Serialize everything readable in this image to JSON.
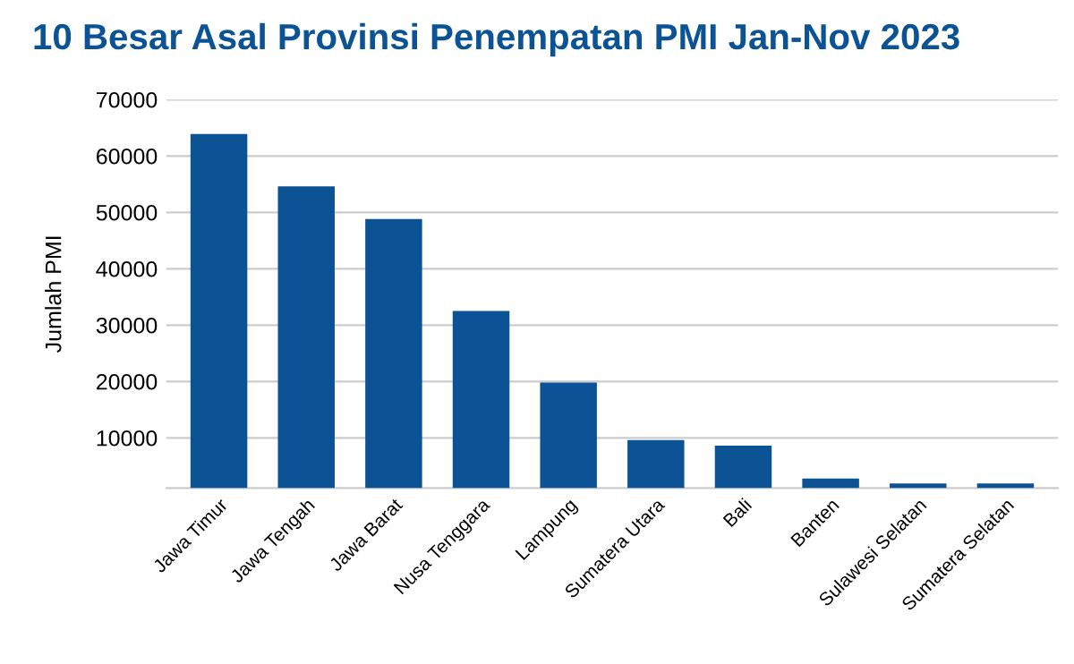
{
  "chart_data": {
    "type": "bar",
    "title": "10 Besar Asal Provinsi Penempatan PMI Jan-Nov 2023",
    "ylabel": "Jumlah PMI",
    "categories": [
      "Jawa Timur",
      "Jawa Tengah",
      "Jawa Barat",
      "Nusa Tenggara",
      "Lampung",
      "Sumatera Utara",
      "Bali",
      "Banten",
      "Sulawesi Selatan",
      "Sumatera Selatan"
    ],
    "values": [
      63900,
      54600,
      48800,
      32500,
      19800,
      9600,
      8600,
      2800,
      1900,
      1900
    ],
    "color": "#0b5394",
    "ylim": [
      1100,
      70000
    ],
    "yticks": [
      10000,
      20000,
      30000,
      40000,
      50000,
      60000,
      70000
    ],
    "grid": "y"
  }
}
